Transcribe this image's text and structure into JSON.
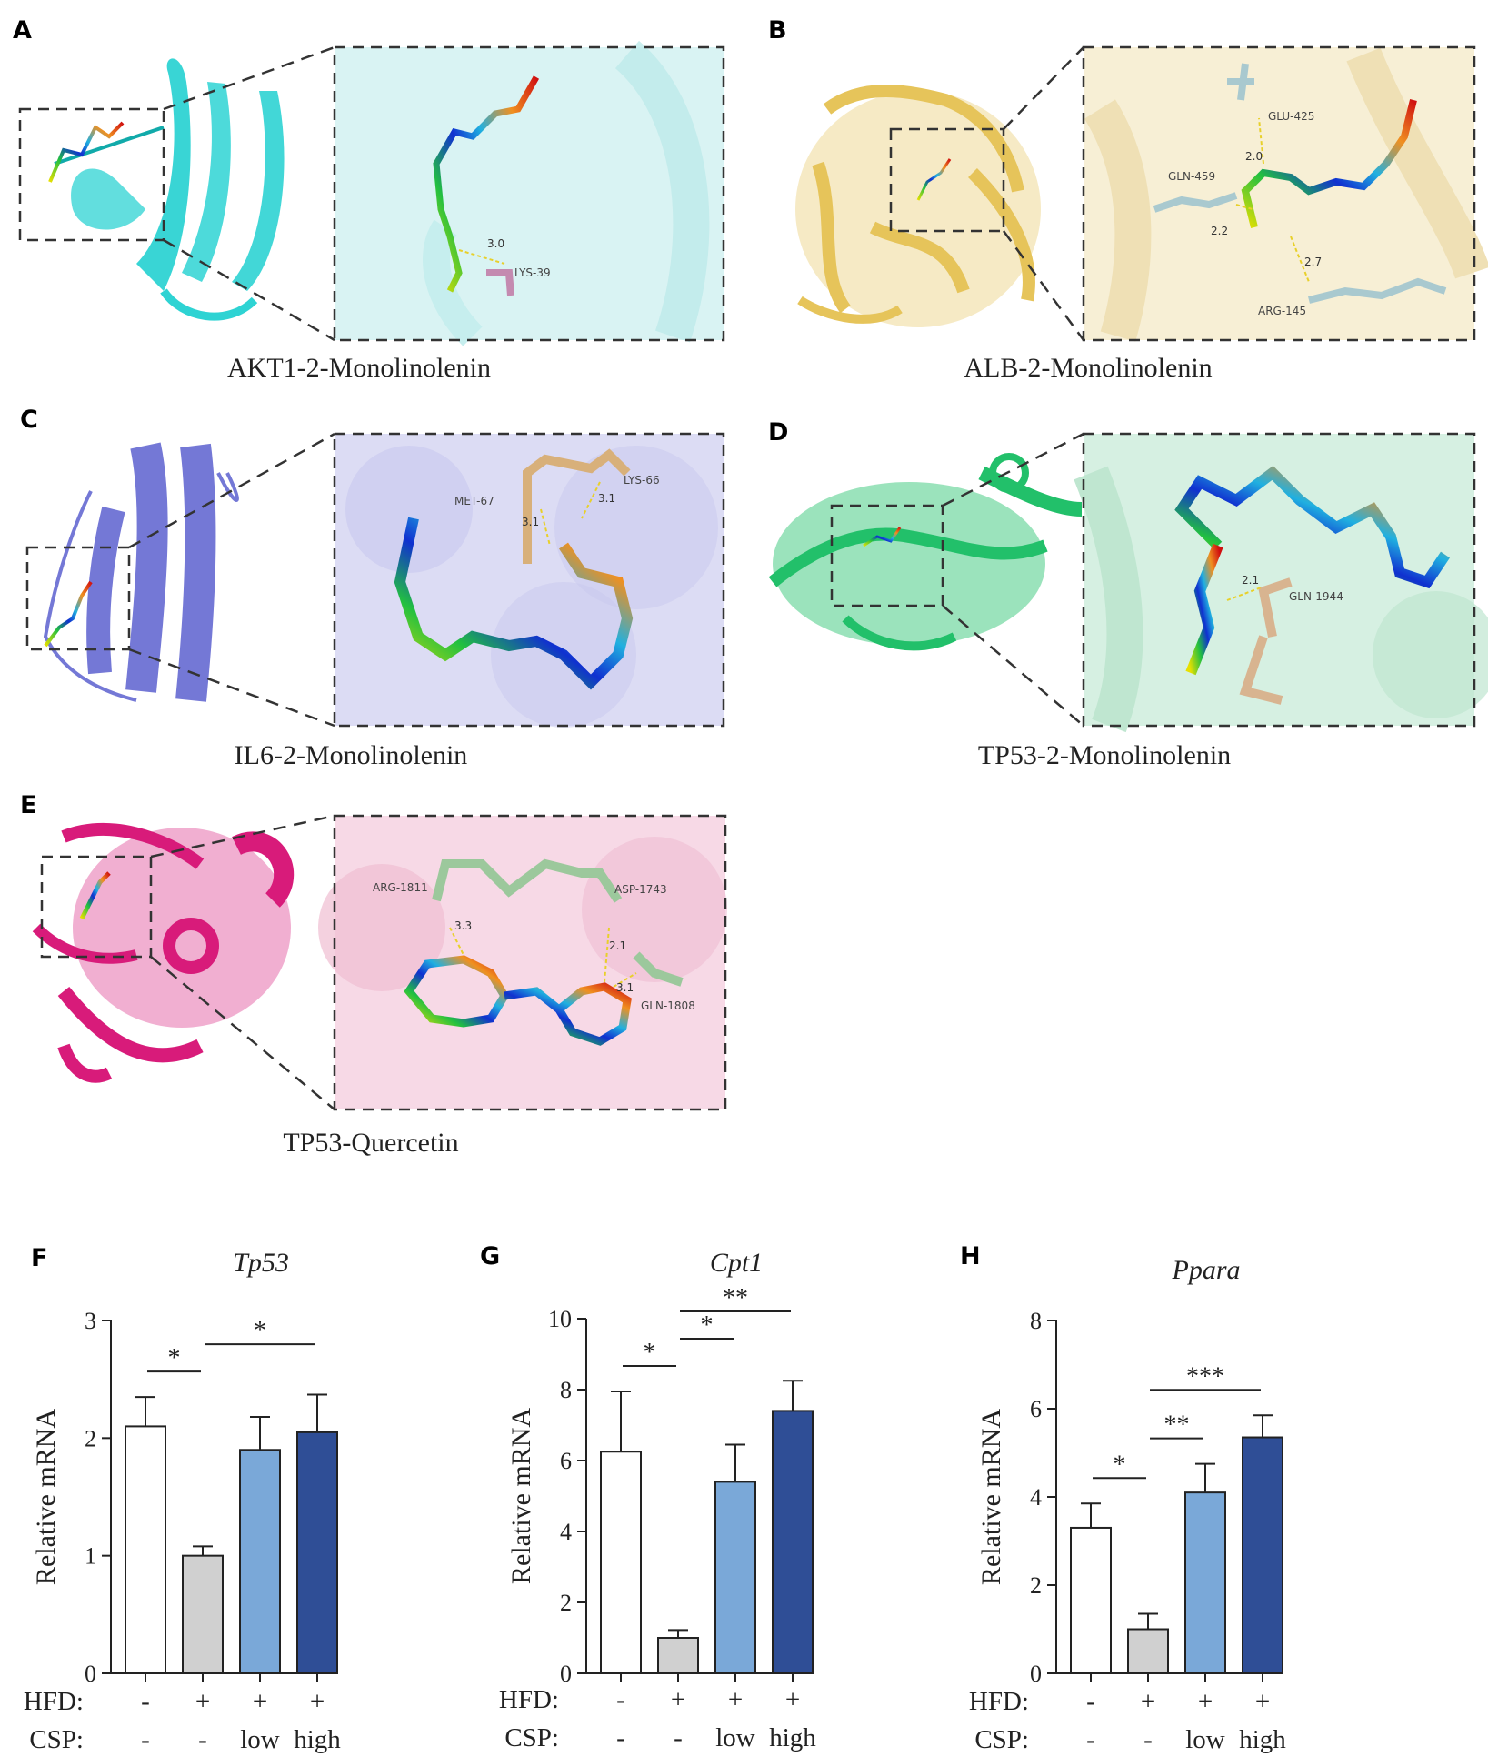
{
  "panels": [
    {
      "letter": "A",
      "caption": "AKT1-2-Monolinolenin",
      "protein_color": "#2ed3d3",
      "inset_bg": "#d9f3f3",
      "residues": [
        {
          "name": "LYS-39",
          "distance": "3.0"
        }
      ]
    },
    {
      "letter": "B",
      "caption": "ALB-2-Monolinolenin",
      "protein_color": "#e6c45a",
      "inset_bg": "#f7efd5",
      "residues": [
        {
          "name": "GLU-425",
          "distance": "2.0"
        },
        {
          "name": "GLN-459",
          "distance": "2.2"
        },
        {
          "name": "ARG-145",
          "distance": "2.7"
        }
      ]
    },
    {
      "letter": "C",
      "caption": "IL6-2-Monolinolenin",
      "protein_color": "#7478d6",
      "inset_bg": "#dcdcf4",
      "residues": [
        {
          "name": "MET-67",
          "distance": "3.1"
        },
        {
          "name": "LYS-66",
          "distance": "3.1"
        }
      ]
    },
    {
      "letter": "D",
      "caption": "TP53-2-Monolinolenin",
      "protein_color": "#22c06a",
      "inset_bg": "#d6f0e2",
      "residues": [
        {
          "name": "GLN-1944",
          "distance": "2.1"
        }
      ]
    },
    {
      "letter": "E",
      "caption": "TP53-Quercetin",
      "protein_color": "#d81b7a",
      "inset_bg": "#f7d9e6",
      "residues": [
        {
          "name": "ARG-1811",
          "distance": "3.3"
        },
        {
          "name": "ASP-1743",
          "distance": "2.1"
        },
        {
          "name": "GLN-1808",
          "distance": "3.1"
        }
      ]
    }
  ],
  "group_labels": {
    "row1": "HFD:",
    "row2": "CSP:"
  },
  "groups": [
    {
      "hfd": "-",
      "csp": "-",
      "color": "#ffffff"
    },
    {
      "hfd": "+",
      "csp": "-",
      "color": "#d0d0d0"
    },
    {
      "hfd": "+",
      "csp": "low",
      "color": "#7aa8d8"
    },
    {
      "hfd": "+",
      "csp": "high",
      "color": "#2f4e96"
    }
  ],
  "chart_data": [
    {
      "letter": "F",
      "type": "bar",
      "title": "Tp53",
      "ylabel": "Relative mRNA",
      "ylim": [
        0,
        3
      ],
      "yticks": [
        0,
        1,
        2,
        3
      ],
      "values": [
        2.1,
        1.0,
        1.9,
        2.05
      ],
      "errors": [
        0.25,
        0.08,
        0.28,
        0.32
      ],
      "significance": [
        {
          "from": 0,
          "to": 1,
          "label": "*"
        },
        {
          "from": 1,
          "to": 3,
          "label": "*"
        }
      ]
    },
    {
      "letter": "G",
      "type": "bar",
      "title": "Cpt1",
      "ylabel": "Relative mRNA",
      "ylim": [
        0,
        10
      ],
      "yticks": [
        0,
        2,
        4,
        6,
        8,
        10
      ],
      "values": [
        6.25,
        1.0,
        5.4,
        7.4
      ],
      "errors": [
        1.7,
        0.22,
        1.05,
        0.85
      ],
      "significance": [
        {
          "from": 0,
          "to": 1,
          "label": "*"
        },
        {
          "from": 1,
          "to": 2,
          "label": "*"
        },
        {
          "from": 1,
          "to": 3,
          "label": "**"
        }
      ]
    },
    {
      "letter": "H",
      "type": "bar",
      "title": "Ppara",
      "ylabel": "Relative mRNA",
      "ylim": [
        0,
        8
      ],
      "yticks": [
        0,
        2,
        4,
        6,
        8
      ],
      "values": [
        3.3,
        1.0,
        4.1,
        5.35
      ],
      "errors": [
        0.55,
        0.35,
        0.65,
        0.5
      ],
      "significance": [
        {
          "from": 0,
          "to": 1,
          "label": "*"
        },
        {
          "from": 1,
          "to": 2,
          "label": "**"
        },
        {
          "from": 1,
          "to": 3,
          "label": "***"
        }
      ]
    }
  ]
}
